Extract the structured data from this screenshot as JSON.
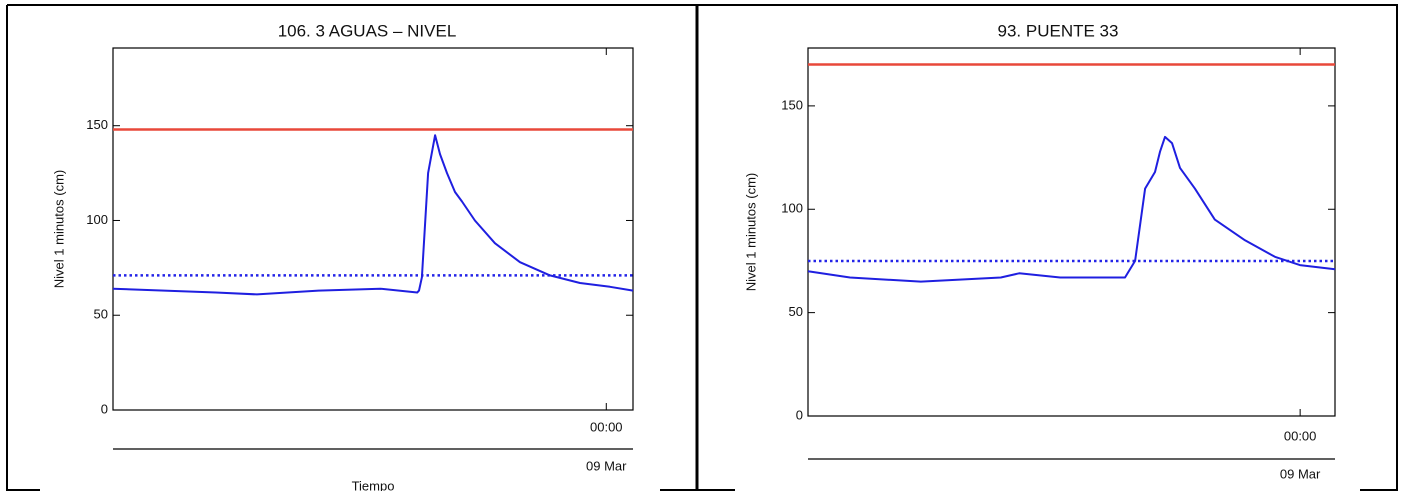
{
  "chart_data": [
    {
      "type": "line",
      "title": "106. 3 AGUAS – NIVEL",
      "ylabel": "Nivel 1 minutos (cm)",
      "xlabel": "Tiempo",
      "date_label": "09 Mar",
      "xlim": [
        -24,
        1.3
      ],
      "xticks": [
        {
          "value": 0,
          "label": "00:00"
        }
      ],
      "ylim": [
        0,
        191
      ],
      "yticks": [
        0,
        50,
        100,
        150
      ],
      "series": [
        {
          "color": "#1f1fe0",
          "x": [
            -24,
            -21.5,
            -19,
            -17,
            -14,
            -11,
            -9.2,
            -9.11,
            -8.97,
            -8.67,
            -8.33,
            -8.09,
            -7.75,
            -7.36,
            -7.02,
            -6.39,
            -5.42,
            -4.2,
            -2.74,
            -1.28,
            0.18,
            1.3
          ],
          "values": [
            64,
            63,
            62,
            61,
            63,
            64,
            62,
            63,
            70,
            125,
            145,
            135,
            125,
            115,
            110,
            100,
            88,
            78,
            71,
            67,
            65,
            63
          ]
        }
      ],
      "thresholds": [
        {
          "value": 148,
          "color": "#e8483a",
          "style": "solid"
        },
        {
          "value": 71,
          "color": "#2424e8",
          "style": "dotted"
        }
      ]
    },
    {
      "type": "line",
      "title": "93. PUENTE 33",
      "ylabel": "Nivel 1 minutos (cm)",
      "date_label": "09 Mar",
      "xlim": [
        -24,
        1.7
      ],
      "xticks": [
        {
          "value": 0,
          "label": "00:00"
        }
      ],
      "ylim": [
        0,
        178
      ],
      "yticks": [
        0,
        50,
        100,
        150
      ],
      "series": [
        {
          "color": "#1f1fe0",
          "x": [
            -24,
            -21.95,
            -18.5,
            -14.6,
            -13.7,
            -11.7,
            -8.54,
            -8.05,
            -7.56,
            -7.08,
            -6.83,
            -6.59,
            -6.25,
            -5.86,
            -5.13,
            -4.16,
            -2.69,
            -1.23,
            -0.01,
            1.7
          ],
          "values": [
            70,
            67,
            65,
            67,
            69,
            67,
            67,
            75,
            110,
            118,
            128,
            135,
            132,
            120,
            110,
            95,
            85,
            77,
            73,
            71
          ]
        }
      ],
      "thresholds": [
        {
          "value": 170,
          "color": "#e8483a",
          "style": "solid"
        },
        {
          "value": 75,
          "color": "#2424e8",
          "style": "dotted"
        }
      ]
    }
  ]
}
